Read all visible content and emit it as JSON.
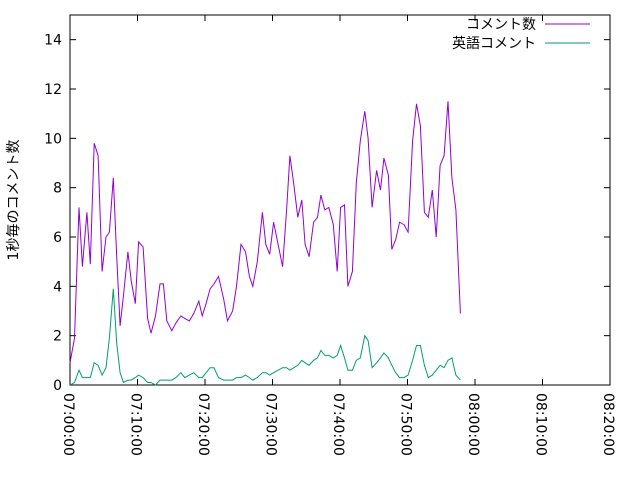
{
  "chart_data": {
    "type": "line",
    "title": "",
    "xlabel": "",
    "ylabel": "1秒毎のコメント数",
    "xlim": [
      0,
      4800
    ],
    "ylim": [
      0,
      15
    ],
    "grid": false,
    "legend_position": "top-right",
    "yticks": [
      0,
      2,
      4,
      6,
      8,
      10,
      12,
      14
    ],
    "xticks": [
      {
        "t": 0,
        "label": "07:00:00"
      },
      {
        "t": 600,
        "label": "07:10:00"
      },
      {
        "t": 1200,
        "label": "07:20:00"
      },
      {
        "t": 1800,
        "label": "07:30:00"
      },
      {
        "t": 2400,
        "label": "07:40:00"
      },
      {
        "t": 3000,
        "label": "07:50:00"
      },
      {
        "t": 3600,
        "label": "08:00:00"
      },
      {
        "t": 4200,
        "label": "08:10:00"
      },
      {
        "t": 4800,
        "label": "08:20:00"
      }
    ],
    "series": [
      {
        "name": "コメント数",
        "color": "#9400d3",
        "points": [
          [
            0,
            0.9
          ],
          [
            40,
            1.9
          ],
          [
            80,
            7.2
          ],
          [
            110,
            4.8
          ],
          [
            150,
            7.0
          ],
          [
            180,
            4.9
          ],
          [
            215,
            9.8
          ],
          [
            250,
            9.3
          ],
          [
            285,
            4.6
          ],
          [
            320,
            6.0
          ],
          [
            350,
            6.2
          ],
          [
            385,
            8.4
          ],
          [
            415,
            5.2
          ],
          [
            445,
            2.4
          ],
          [
            475,
            3.6
          ],
          [
            515,
            5.4
          ],
          [
            545,
            4.2
          ],
          [
            580,
            3.3
          ],
          [
            610,
            5.8
          ],
          [
            650,
            5.6
          ],
          [
            690,
            2.7
          ],
          [
            720,
            2.1
          ],
          [
            760,
            2.8
          ],
          [
            800,
            4.1
          ],
          [
            830,
            4.1
          ],
          [
            860,
            2.6
          ],
          [
            905,
            2.2
          ],
          [
            940,
            2.5
          ],
          [
            985,
            2.8
          ],
          [
            1020,
            2.7
          ],
          [
            1060,
            2.6
          ],
          [
            1100,
            2.9
          ],
          [
            1145,
            3.4
          ],
          [
            1175,
            2.8
          ],
          [
            1210,
            3.3
          ],
          [
            1245,
            3.9
          ],
          [
            1280,
            4.1
          ],
          [
            1320,
            4.4
          ],
          [
            1365,
            3.5
          ],
          [
            1400,
            2.6
          ],
          [
            1445,
            3.0
          ],
          [
            1480,
            4.0
          ],
          [
            1520,
            5.7
          ],
          [
            1560,
            5.4
          ],
          [
            1595,
            4.4
          ],
          [
            1625,
            4.0
          ],
          [
            1665,
            5.0
          ],
          [
            1710,
            7.0
          ],
          [
            1740,
            5.7
          ],
          [
            1775,
            5.3
          ],
          [
            1810,
            6.6
          ],
          [
            1850,
            5.7
          ],
          [
            1890,
            4.8
          ],
          [
            1925,
            7.1
          ],
          [
            1955,
            9.3
          ],
          [
            1990,
            8.1
          ],
          [
            2025,
            6.8
          ],
          [
            2060,
            7.5
          ],
          [
            2090,
            5.7
          ],
          [
            2125,
            5.2
          ],
          [
            2165,
            6.6
          ],
          [
            2200,
            6.8
          ],
          [
            2230,
            7.7
          ],
          [
            2265,
            7.1
          ],
          [
            2300,
            7.2
          ],
          [
            2340,
            6.5
          ],
          [
            2375,
            4.6
          ],
          [
            2405,
            7.2
          ],
          [
            2440,
            7.3
          ],
          [
            2470,
            4.0
          ],
          [
            2510,
            4.6
          ],
          [
            2545,
            8.2
          ],
          [
            2580,
            9.9
          ],
          [
            2620,
            11.1
          ],
          [
            2650,
            10.0
          ],
          [
            2685,
            7.2
          ],
          [
            2725,
            8.7
          ],
          [
            2760,
            7.9
          ],
          [
            2790,
            9.2
          ],
          [
            2830,
            8.5
          ],
          [
            2860,
            5.5
          ],
          [
            2895,
            5.9
          ],
          [
            2930,
            6.6
          ],
          [
            2970,
            6.5
          ],
          [
            3005,
            6.2
          ],
          [
            3045,
            9.9
          ],
          [
            3080,
            11.4
          ],
          [
            3115,
            10.5
          ],
          [
            3150,
            7.0
          ],
          [
            3185,
            6.8
          ],
          [
            3220,
            7.9
          ],
          [
            3255,
            6.0
          ],
          [
            3290,
            8.9
          ],
          [
            3325,
            9.3
          ],
          [
            3360,
            11.5
          ],
          [
            3395,
            8.4
          ],
          [
            3430,
            7.1
          ],
          [
            3470,
            2.9
          ]
        ]
      },
      {
        "name": "英語コメント",
        "color": "#009e73",
        "points": [
          [
            0,
            0.0
          ],
          [
            40,
            0.1
          ],
          [
            80,
            0.6
          ],
          [
            110,
            0.3
          ],
          [
            150,
            0.3
          ],
          [
            180,
            0.3
          ],
          [
            215,
            0.9
          ],
          [
            250,
            0.8
          ],
          [
            285,
            0.4
          ],
          [
            320,
            0.7
          ],
          [
            350,
            1.9
          ],
          [
            385,
            3.9
          ],
          [
            415,
            1.7
          ],
          [
            445,
            0.5
          ],
          [
            475,
            0.1
          ],
          [
            515,
            0.2
          ],
          [
            545,
            0.2
          ],
          [
            580,
            0.3
          ],
          [
            610,
            0.4
          ],
          [
            650,
            0.3
          ],
          [
            690,
            0.1
          ],
          [
            720,
            0.1
          ],
          [
            760,
            0.0
          ],
          [
            800,
            0.2
          ],
          [
            830,
            0.2
          ],
          [
            860,
            0.2
          ],
          [
            905,
            0.2
          ],
          [
            940,
            0.3
          ],
          [
            985,
            0.5
          ],
          [
            1020,
            0.3
          ],
          [
            1060,
            0.4
          ],
          [
            1100,
            0.5
          ],
          [
            1145,
            0.3
          ],
          [
            1175,
            0.3
          ],
          [
            1210,
            0.5
          ],
          [
            1245,
            0.7
          ],
          [
            1280,
            0.7
          ],
          [
            1320,
            0.3
          ],
          [
            1365,
            0.2
          ],
          [
            1400,
            0.2
          ],
          [
            1445,
            0.2
          ],
          [
            1480,
            0.3
          ],
          [
            1520,
            0.3
          ],
          [
            1560,
            0.4
          ],
          [
            1595,
            0.3
          ],
          [
            1625,
            0.2
          ],
          [
            1665,
            0.3
          ],
          [
            1710,
            0.5
          ],
          [
            1740,
            0.5
          ],
          [
            1775,
            0.4
          ],
          [
            1810,
            0.5
          ],
          [
            1850,
            0.6
          ],
          [
            1890,
            0.7
          ],
          [
            1925,
            0.7
          ],
          [
            1955,
            0.6
          ],
          [
            1990,
            0.7
          ],
          [
            2025,
            0.8
          ],
          [
            2060,
            1.0
          ],
          [
            2090,
            0.9
          ],
          [
            2125,
            0.8
          ],
          [
            2165,
            1.0
          ],
          [
            2200,
            1.1
          ],
          [
            2230,
            1.4
          ],
          [
            2265,
            1.2
          ],
          [
            2300,
            1.2
          ],
          [
            2340,
            1.1
          ],
          [
            2375,
            1.2
          ],
          [
            2405,
            1.6
          ],
          [
            2440,
            1.1
          ],
          [
            2470,
            0.6
          ],
          [
            2510,
            0.6
          ],
          [
            2545,
            1.0
          ],
          [
            2580,
            1.1
          ],
          [
            2620,
            2.0
          ],
          [
            2650,
            1.8
          ],
          [
            2685,
            0.7
          ],
          [
            2725,
            0.9
          ],
          [
            2760,
            1.1
          ],
          [
            2790,
            1.3
          ],
          [
            2830,
            1.1
          ],
          [
            2860,
            0.8
          ],
          [
            2895,
            0.5
          ],
          [
            2930,
            0.3
          ],
          [
            2970,
            0.3
          ],
          [
            3005,
            0.4
          ],
          [
            3045,
            1.0
          ],
          [
            3080,
            1.6
          ],
          [
            3115,
            1.6
          ],
          [
            3150,
            0.8
          ],
          [
            3185,
            0.3
          ],
          [
            3220,
            0.4
          ],
          [
            3255,
            0.6
          ],
          [
            3290,
            0.8
          ],
          [
            3325,
            0.7
          ],
          [
            3360,
            1.0
          ],
          [
            3395,
            1.1
          ],
          [
            3430,
            0.4
          ],
          [
            3470,
            0.2
          ]
        ]
      }
    ]
  }
}
